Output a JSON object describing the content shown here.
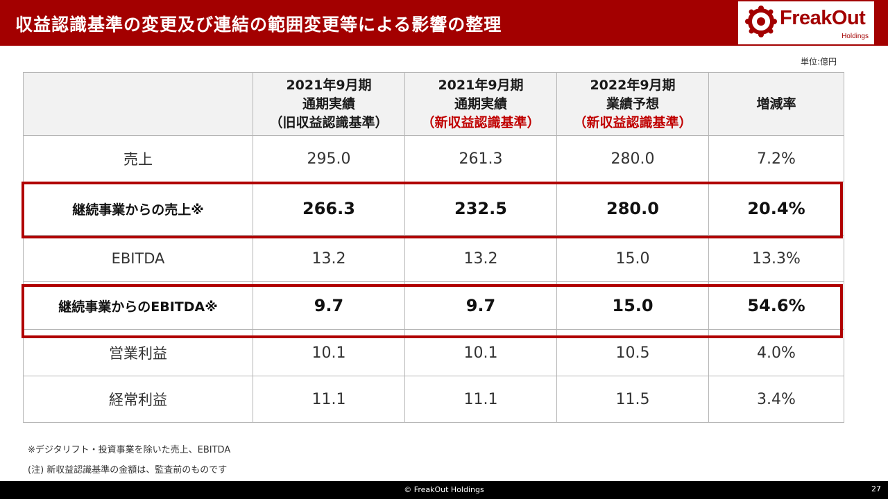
{
  "header": {
    "title": "収益認識基準の変更及び連結の範囲変更等による影響の整理",
    "logo_name": "FreakOut",
    "logo_sub": "Holdings"
  },
  "unit": "単位:億円",
  "table": {
    "columns": [
      {
        "line1": "2021年9月期",
        "line2": "通期実績",
        "line3": "（旧収益認識基準）",
        "line3_red": false
      },
      {
        "line1": "2021年9月期",
        "line2": "通期実績",
        "line3": "（新収益認識基準）",
        "line3_red": true
      },
      {
        "line1": "2022年9月期",
        "line2": "業績予想",
        "line3": "（新収益認識基準）",
        "line3_red": true
      },
      {
        "line1": "増減率",
        "line2": "",
        "line3": "",
        "line3_red": false
      }
    ],
    "rows": [
      {
        "label": "売上",
        "values": [
          "295.0",
          "261.3",
          "280.0",
          "7.2%"
        ]
      },
      {
        "label": "継続事業からの売上※",
        "values": [
          "266.3",
          "232.5",
          "280.0",
          "20.4%"
        ]
      },
      {
        "label": "EBITDA",
        "values": [
          "13.2",
          "13.2",
          "15.0",
          "13.3%"
        ]
      },
      {
        "label": "継続事業からのEBITDA※",
        "values": [
          "9.7",
          "9.7",
          "15.0",
          "54.6%"
        ]
      },
      {
        "label": "営業利益",
        "values": [
          "10.1",
          "10.1",
          "10.5",
          "4.0%"
        ]
      },
      {
        "label": "経常利益",
        "values": [
          "11.1",
          "11.1",
          "11.5",
          "3.4%"
        ]
      }
    ]
  },
  "notes": {
    "note1": "※デジタリフト・投資事業を除いた売上、EBITDA",
    "note2": "(注) 新収益認識基準の金額は、監査前のものです"
  },
  "footer": {
    "copyright": "© FreakOut Holdings",
    "page": "27"
  },
  "colors": {
    "brand_red": "#a30000",
    "highlight_red": "#b00000",
    "text_red": "#c00000"
  }
}
